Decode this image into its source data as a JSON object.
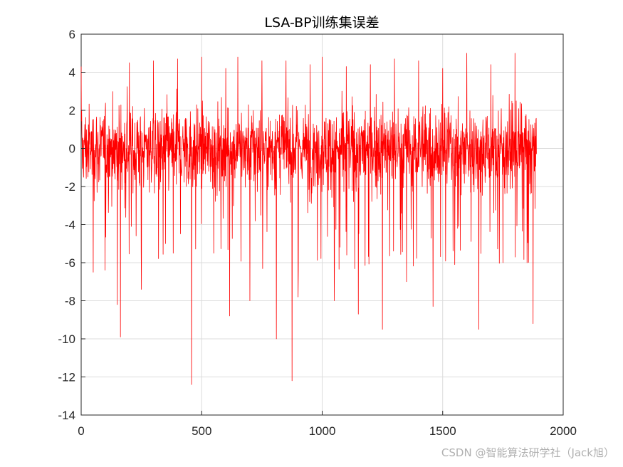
{
  "chart_data": {
    "type": "line",
    "title": "LSA-BP训练集误差",
    "xlabel": "",
    "ylabel": "",
    "xlim": [
      0,
      2000
    ],
    "ylim": [
      -14,
      6
    ],
    "xticks": [
      0,
      500,
      1000,
      1500,
      2000
    ],
    "yticks": [
      -14,
      -12,
      -10,
      -8,
      -6,
      -4,
      -2,
      0,
      2,
      4,
      6
    ],
    "grid": true,
    "legend": "none",
    "series": [
      {
        "color": "#ff0000",
        "n_points": 1890,
        "x": [
          0,
          50,
          100,
          150,
          163,
          200,
          250,
          300,
          350,
          400,
          458,
          500,
          550,
          600,
          616,
          650,
          700,
          750,
          810,
          850,
          875,
          900,
          950,
          1000,
          1050,
          1100,
          1150,
          1200,
          1250,
          1300,
          1350,
          1400,
          1460,
          1500,
          1550,
          1600,
          1650,
          1700,
          1750,
          1800,
          1850,
          1875,
          1890
        ],
        "y": [
          4.3,
          -6.5,
          2.0,
          -8.2,
          -9.9,
          4.5,
          -7.4,
          4.6,
          -5.0,
          4.7,
          -12.4,
          4.8,
          -5.5,
          4.2,
          -8.8,
          4.8,
          -8.0,
          4.6,
          -10.0,
          4.6,
          -12.2,
          -7.8,
          4.4,
          4.8,
          -8.0,
          4.3,
          -8.7,
          4.4,
          -9.5,
          4.7,
          -7.0,
          4.6,
          -8.3,
          4.2,
          -6.1,
          5.0,
          -9.5,
          4.4,
          -6.0,
          5.0,
          -6.0,
          -9.2,
          3.6
        ]
      }
    ]
  },
  "watermark": "CSDN @智能算法研学社（Jack旭）"
}
